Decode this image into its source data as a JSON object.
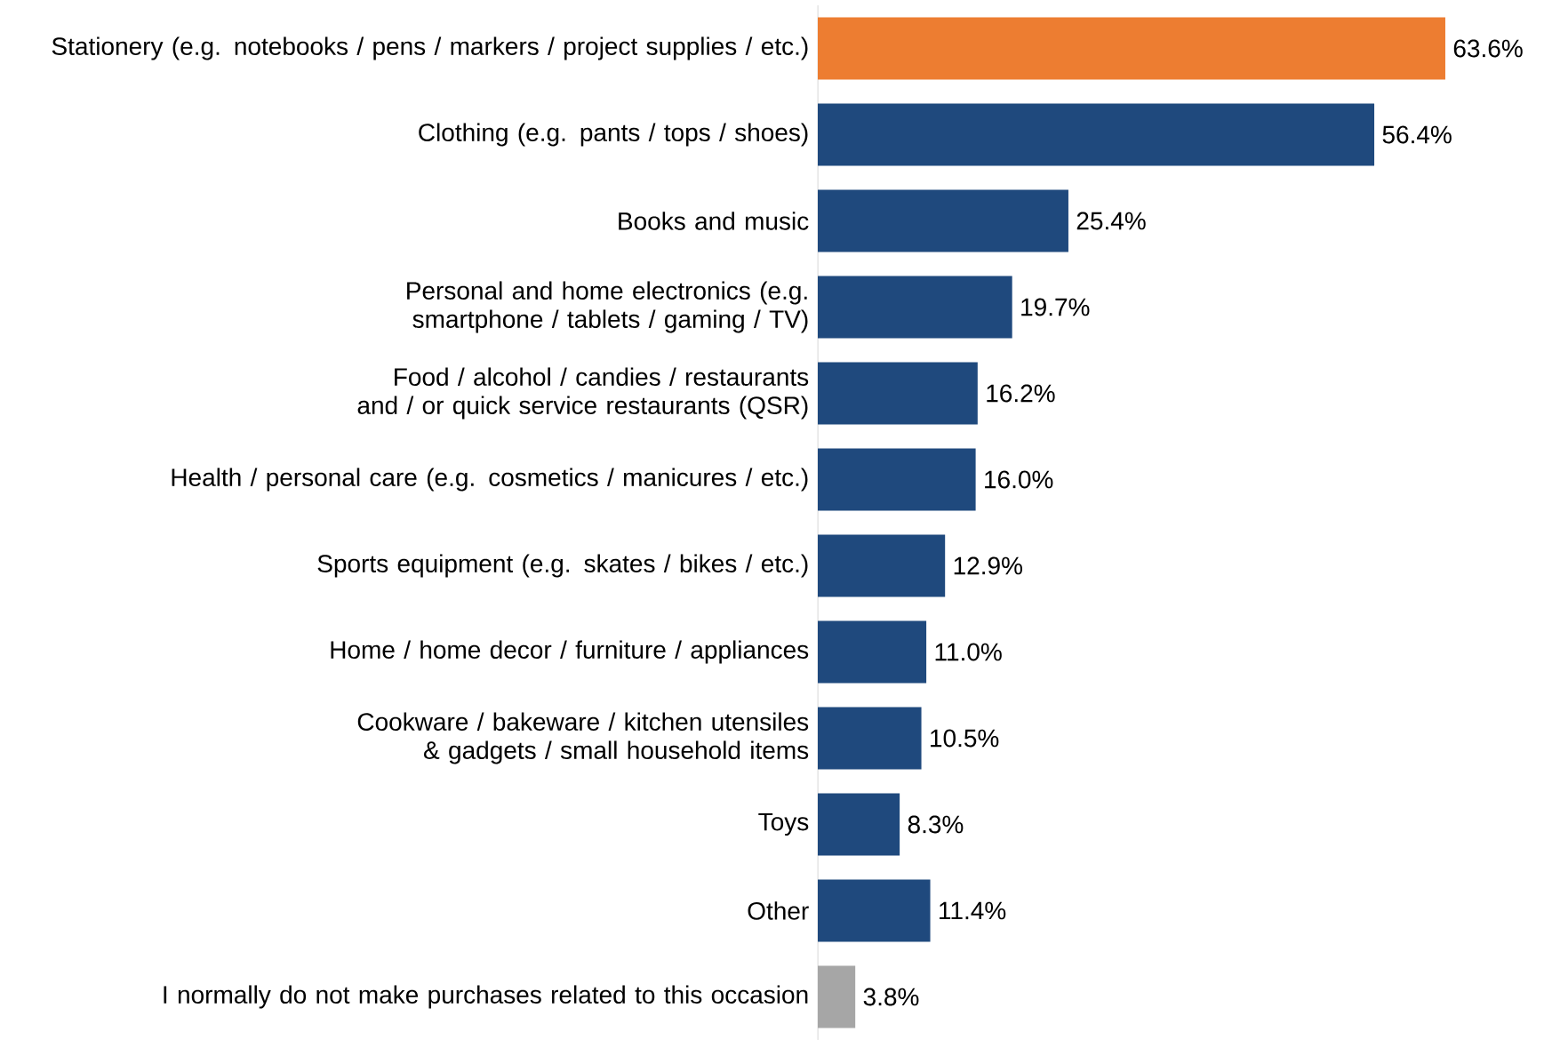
{
  "chart_data": {
    "type": "bar",
    "orientation": "horizontal",
    "categories": [
      "Stationery (e.g. notebooks / pens / markers / project supplies / etc.)",
      "Clothing (e.g. pants / tops / shoes)",
      "Books and music",
      "Personal and home electronics (e.g. smartphone / tablets / gaming / TV)",
      "Food / alcohol / candies / restaurants and / or quick service restaurants (QSR)",
      "Health / personal care (e.g. cosmetics / manicures / etc.)",
      "Sports equipment (e.g. skates / bikes / etc.)",
      "Home / home decor / furniture / appliances",
      "Cookware / bakeware / kitchen utensiles & gadgets / small household items",
      "Toys",
      "Other",
      "I normally do not make purchases related to this occasion"
    ],
    "values": [
      63.6,
      56.4,
      25.4,
      19.7,
      16.2,
      16.0,
      12.9,
      11.0,
      10.5,
      8.3,
      11.4,
      3.8
    ],
    "value_labels": [
      "63.6%",
      "56.4%",
      "25.4%",
      "19.7%",
      "16.2%",
      "16.0%",
      "12.9%",
      "11.0%",
      "10.5%",
      "8.3%",
      "11.4%",
      "3.8%"
    ],
    "colors": [
      "#ed7d31",
      "#1f497d",
      "#1f497d",
      "#1f497d",
      "#1f497d",
      "#1f497d",
      "#1f497d",
      "#1f497d",
      "#1f497d",
      "#1f497d",
      "#1f497d",
      "#a6a6a6"
    ]
  }
}
